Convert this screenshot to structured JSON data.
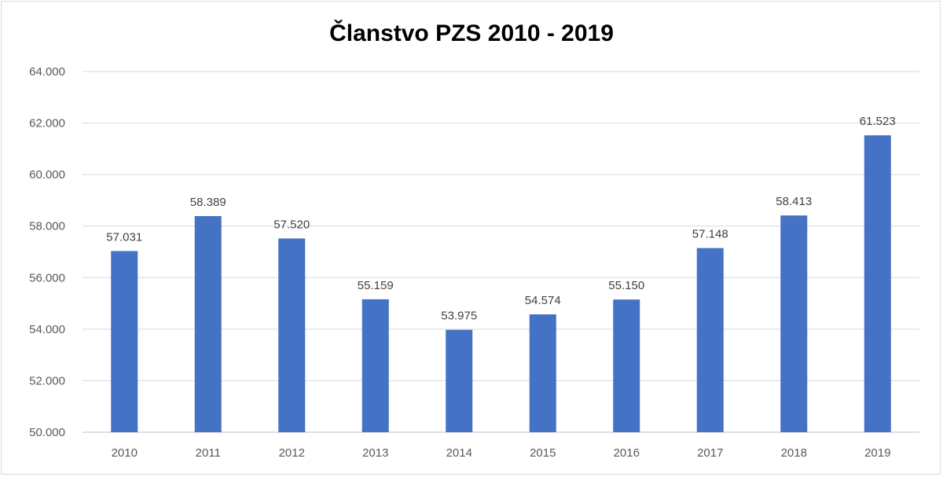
{
  "chart_data": {
    "type": "bar",
    "title": "Članstvo PZS 2010 - 2019",
    "xlabel": "",
    "ylabel": "",
    "categories": [
      "2010",
      "2011",
      "2012",
      "2013",
      "2014",
      "2015",
      "2016",
      "2017",
      "2018",
      "2019"
    ],
    "values": [
      57031,
      58389,
      57520,
      55159,
      53975,
      54574,
      55150,
      57148,
      58413,
      61523
    ],
    "value_labels": [
      "57.031",
      "58.389",
      "57.520",
      "55.159",
      "53.975",
      "54.574",
      "55.150",
      "57.148",
      "58.413",
      "61.523"
    ],
    "ylim": [
      50000,
      64000
    ],
    "yticks": [
      50000,
      52000,
      54000,
      56000,
      58000,
      60000,
      62000,
      64000
    ],
    "ytick_labels": [
      "50.000",
      "52.000",
      "54.000",
      "56.000",
      "58.000",
      "60.000",
      "62.000",
      "64.000"
    ],
    "grid": true,
    "legend": "none",
    "bar_color": "#4472c4"
  }
}
